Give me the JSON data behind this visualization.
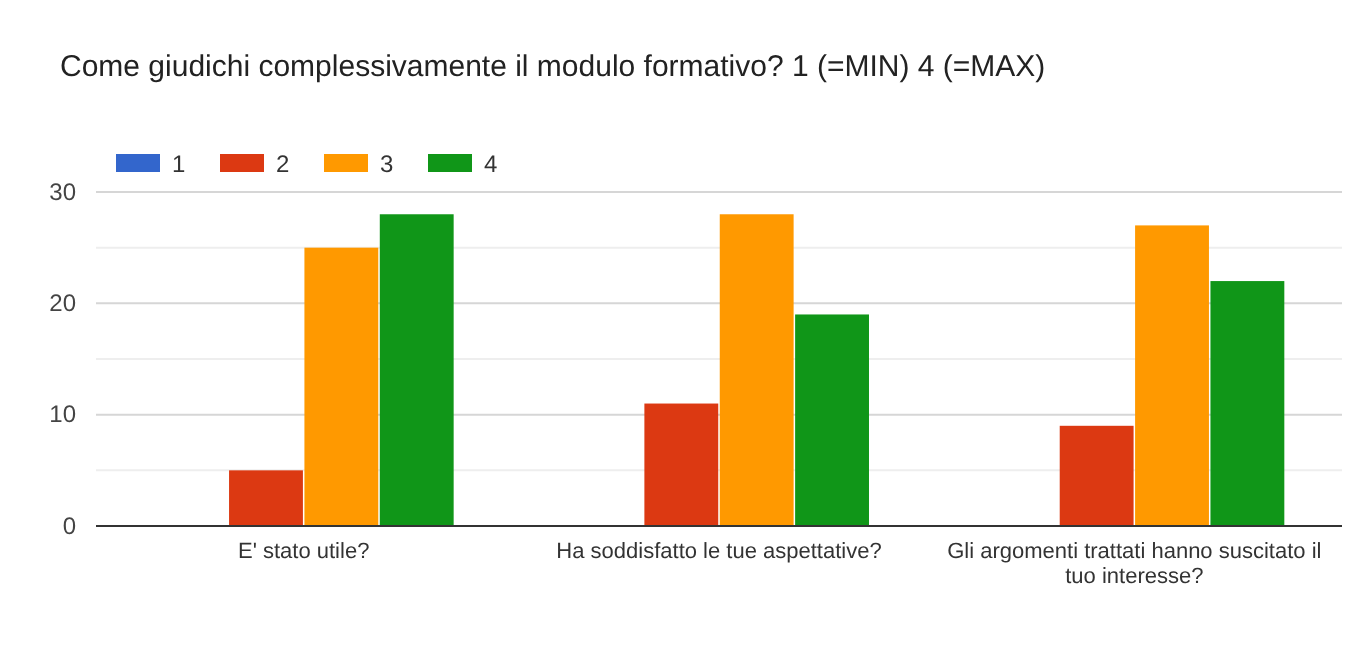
{
  "chart_data": {
    "type": "bar",
    "title": "Come giudichi complessivamente il modulo formativo? 1 (=MIN) 4 (=MAX)",
    "categories": [
      "E' stato utile?",
      "Ha soddisfatto le tue aspettative?",
      "Gli argomenti trattati hanno suscitato il tuo interesse?"
    ],
    "series": [
      {
        "name": "1",
        "color": "#3366cc",
        "values": [
          0,
          0,
          0
        ]
      },
      {
        "name": "2",
        "color": "#dc3912",
        "values": [
          5,
          11,
          9
        ]
      },
      {
        "name": "3",
        "color": "#ff9900",
        "values": [
          25,
          28,
          27
        ]
      },
      {
        "name": "4",
        "color": "#109618",
        "values": [
          28,
          19,
          22
        ]
      }
    ],
    "ylim": [
      0,
      30
    ],
    "yticks": [
      0,
      {
        "value": 5,
        "label": null
      },
      10,
      {
        "value": 15,
        "label": null
      },
      20,
      {
        "value": 25,
        "label": null
      },
      30
    ],
    "grid": true,
    "legend": "top left"
  }
}
